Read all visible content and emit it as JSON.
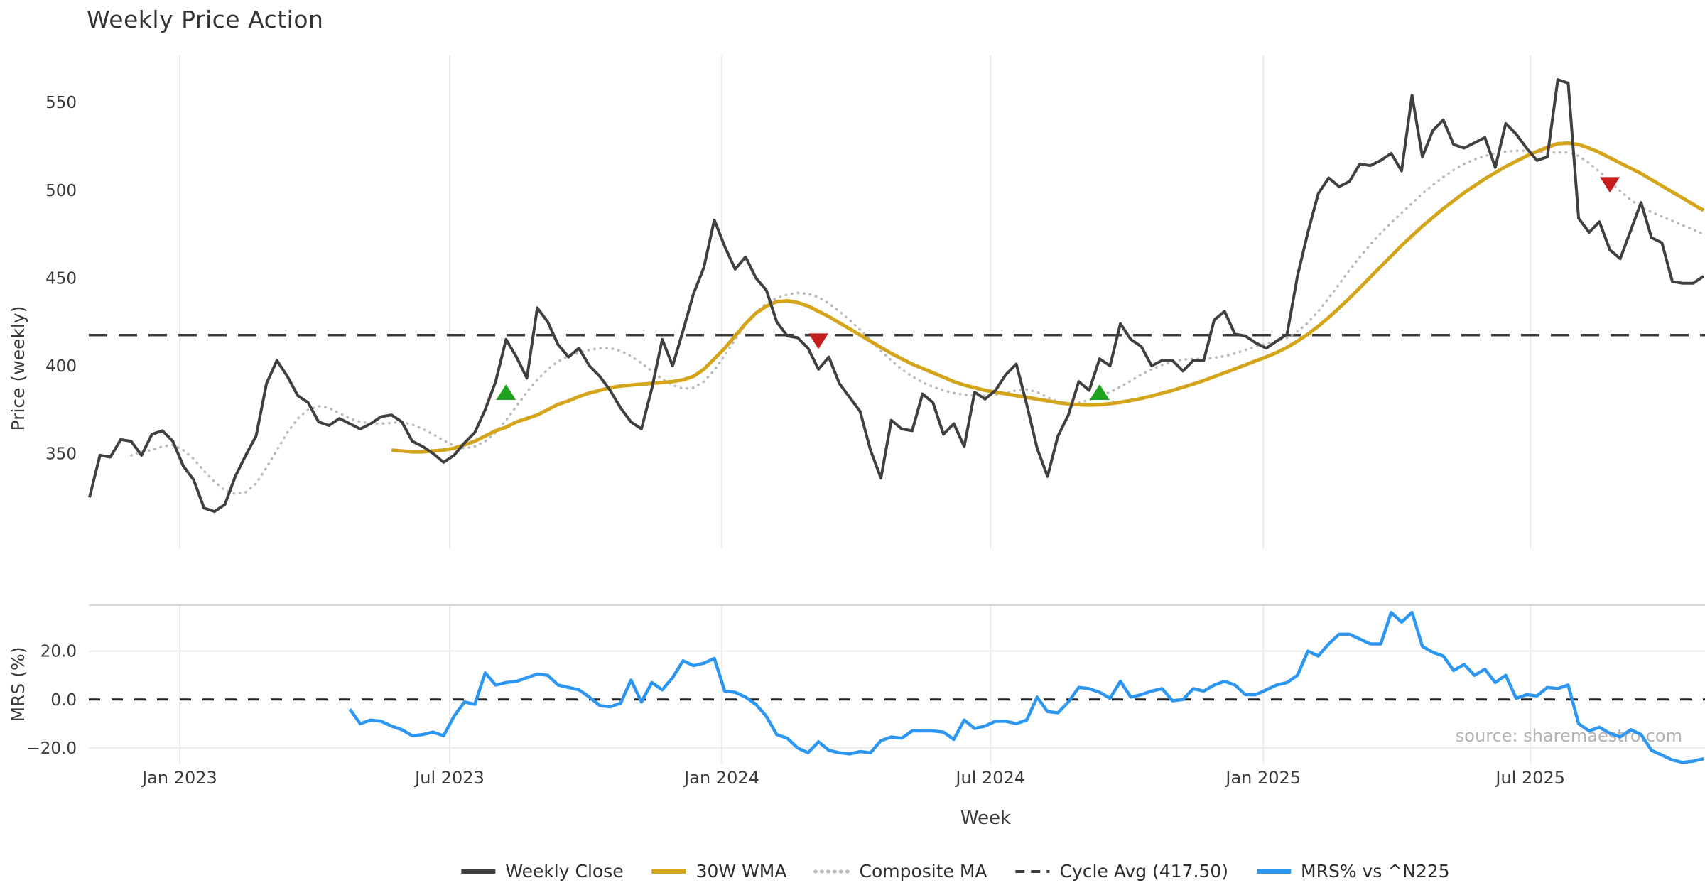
{
  "title": "Weekly Price Action",
  "source": "source: sharemaestro.com",
  "price_axis": {
    "label": "Price (weekly)",
    "ticks": [
      {
        "v": 350,
        "label": "350"
      },
      {
        "v": 400,
        "label": "400"
      },
      {
        "v": 450,
        "label": "450"
      },
      {
        "v": 500,
        "label": "500"
      },
      {
        "v": 550,
        "label": "550"
      }
    ]
  },
  "mrs_axis": {
    "label": "MRS (%)",
    "ticks": [
      {
        "v": -20,
        "label": "−20.0"
      },
      {
        "v": 0,
        "label": "0.0"
      },
      {
        "v": 20,
        "label": "20.0"
      }
    ]
  },
  "x_axis": {
    "label": "Week",
    "ticks": [
      {
        "label": "Jan 2023",
        "i": 8.66
      },
      {
        "label": "Jul 2023",
        "i": 34.59
      },
      {
        "label": "Jan 2024",
        "i": 60.72
      },
      {
        "label": "Jul 2024",
        "i": 86.52
      },
      {
        "label": "Jan 2025",
        "i": 112.72
      },
      {
        "label": "Jul 2025",
        "i": 138.37
      }
    ]
  },
  "legend": [
    {
      "label": "Weekly Close",
      "color": "#404040",
      "style": "solid"
    },
    {
      "label": "30W WMA",
      "color": "#d4a51b",
      "style": "solid"
    },
    {
      "label": "Composite MA",
      "color": "#bbbbbb",
      "style": "dotted"
    },
    {
      "label": "Cycle Avg (417.50)",
      "color": "#3a3a3a",
      "style": "dashed"
    },
    {
      "label": "MRS% vs ^N225",
      "color": "#2d96f0",
      "style": "solid"
    }
  ],
  "colors": {
    "close": "#404040",
    "wma": "#d4a51b",
    "composite": "#bbbbbb",
    "cycle": "#3a3a3a",
    "mrs": "#2d96f0",
    "grid": "#ececec",
    "spine": "#d8d8d8",
    "tick_text": "#3a3a3a",
    "source_text": "#b3b3b3",
    "marker_up": "#1fa31f",
    "marker_down": "#c41e1e"
  },
  "chart_data": {
    "type": "line",
    "title": "Weekly Price Action",
    "x_unit": "week_index",
    "n_weeks": 156,
    "xlabel": "Week",
    "panels": [
      {
        "name": "price",
        "ylabel": "Price (weekly)",
        "ylim": [
          296,
          578
        ],
        "yticks": [
          350,
          400,
          450,
          500,
          550
        ],
        "grid": "vertical"
      },
      {
        "name": "mrs",
        "ylabel": "MRS (%)",
        "ylim": [
          -26.5,
          39
        ],
        "yticks": [
          -20,
          0,
          20
        ],
        "grid": "vertical+horizontal"
      }
    ],
    "cycle_avg": 417.5,
    "mrs_zero_line": 0,
    "series": [
      {
        "name": "Weekly Close",
        "panel": "price",
        "style": "solid",
        "color": "#404040",
        "start": 0,
        "values": [
          325,
          349,
          348,
          358,
          357,
          349,
          361,
          363,
          357,
          343,
          335,
          319,
          317,
          321,
          337,
          349,
          360,
          390,
          403,
          394,
          383,
          379,
          368,
          366,
          370,
          367,
          364,
          367,
          371,
          372,
          368,
          357,
          354,
          350,
          345,
          349,
          356,
          362,
          375,
          391,
          415,
          405,
          393,
          433,
          425,
          412,
          405,
          410,
          400,
          394,
          386,
          376,
          368,
          364,
          387,
          415,
          400,
          420,
          441,
          456,
          483,
          468,
          455,
          462,
          450,
          443,
          425,
          417,
          416,
          410,
          398,
          405,
          390,
          382,
          374,
          352,
          336,
          369,
          364,
          363,
          384,
          379,
          361,
          367,
          354,
          385,
          381,
          386,
          395,
          401,
          378,
          353,
          337,
          360,
          372,
          391,
          386,
          404,
          400,
          424,
          415,
          411,
          400,
          403,
          403,
          397,
          403,
          403,
          426,
          431,
          418,
          417,
          413,
          410,
          414,
          418,
          451,
          476,
          498,
          507,
          502,
          505,
          515,
          514,
          517,
          521,
          511,
          554,
          519,
          534,
          540,
          526,
          524,
          527,
          530,
          513,
          538,
          532,
          524,
          517,
          519,
          563,
          561,
          484,
          476,
          482,
          466,
          461,
          477,
          493,
          473,
          470,
          448,
          447,
          447,
          451
        ]
      },
      {
        "name": "30W WMA",
        "panel": "price",
        "style": "solid",
        "color": "#d4a51b",
        "start": 29,
        "values": [
          352,
          351.5,
          351,
          351,
          351.5,
          352,
          353,
          355,
          357,
          360,
          363,
          365,
          368,
          370,
          372,
          375,
          378,
          380,
          382.5,
          384.5,
          386,
          387.5,
          388.5,
          389,
          389.5,
          390,
          390.5,
          391,
          392,
          394,
          398,
          404,
          410,
          417,
          424,
          430,
          434,
          436.5,
          437,
          436,
          434,
          431,
          428,
          424.5,
          421,
          417.5,
          414,
          410.5,
          407,
          404,
          401,
          398.5,
          396,
          393.5,
          391,
          389,
          387.5,
          386,
          385,
          384,
          383,
          382,
          381,
          380,
          379,
          378.3,
          377.8,
          377.6,
          377.8,
          378.4,
          379.2,
          380.2,
          381.4,
          382.8,
          384.4,
          386,
          387.8,
          389.6,
          391.6,
          393.8,
          396,
          398.2,
          400.5,
          402.8,
          405,
          407.5,
          410.5,
          414,
          418,
          422.5,
          427.5,
          433,
          438.5,
          444.5,
          450.5,
          456.5,
          462.5,
          468.5,
          474,
          479.5,
          484.5,
          489.5,
          494,
          498.5,
          502.5,
          506.5,
          510,
          513.5,
          516.5,
          519.5,
          522,
          524.5,
          526.5,
          526.8,
          526,
          524,
          521.5,
          518.5,
          515.5,
          512.5,
          509.5,
          506,
          502.5,
          499,
          495.5,
          492,
          488.5
        ]
      },
      {
        "name": "Composite MA",
        "panel": "price",
        "style": "dotted",
        "color": "#bbbbbb",
        "start": 4,
        "values": [
          349,
          351,
          352,
          354,
          355,
          352,
          347,
          340,
          334,
          329,
          327,
          328,
          333,
          342,
          352,
          362,
          370,
          375,
          377,
          376,
          373,
          370,
          368,
          367,
          367,
          367.5,
          368,
          366.5,
          364,
          361,
          357.5,
          354.5,
          353,
          354,
          357,
          362,
          369,
          377,
          385,
          392,
          398,
          402.5,
          405.5,
          407.5,
          409,
          410,
          410,
          408.5,
          405.5,
          401.5,
          397,
          392.5,
          389,
          387,
          387.5,
          391,
          397.5,
          406,
          415,
          423.5,
          430.5,
          435.5,
          438.5,
          440.5,
          441.5,
          441,
          439,
          435.5,
          431,
          426,
          420.5,
          414.5,
          408.5,
          403,
          398,
          394,
          390.5,
          388,
          386,
          384.5,
          383.5,
          383,
          383,
          383.5,
          384.5,
          386,
          386.5,
          385,
          382,
          379.5,
          378.5,
          379,
          380.5,
          382.5,
          385,
          388,
          391.5,
          395,
          398,
          400.5,
          402.5,
          403.5,
          404,
          404,
          404.5,
          405.5,
          407,
          409,
          411,
          412.5,
          414,
          416,
          419.5,
          424.5,
          431,
          438.5,
          446.5,
          454.5,
          462,
          469,
          475.5,
          481.5,
          487,
          492.5,
          498,
          503,
          507.5,
          511.5,
          515,
          517.5,
          519.5,
          521,
          522,
          522.5,
          522.5,
          522,
          521.5,
          521.5,
          521.5,
          519.5,
          515.5,
          510.5,
          505,
          499.5,
          494.5,
          490.5,
          487.5,
          485,
          482.5,
          480,
          477.5,
          475
        ]
      },
      {
        "name": "MRS% vs ^N225",
        "panel": "mrs",
        "style": "solid",
        "color": "#2d96f0",
        "start": 25,
        "values": [
          -4,
          -10,
          -8.5,
          -9,
          -11,
          -12.5,
          -15,
          -14.5,
          -13.5,
          -15,
          -7,
          -1,
          -2,
          11,
          6,
          7,
          7.5,
          9,
          10.5,
          10,
          6,
          5,
          4,
          1,
          -2.5,
          -3,
          -1.5,
          8,
          -1,
          7,
          4,
          9,
          16,
          14,
          15,
          17,
          3.5,
          3,
          1,
          -2,
          -7,
          -14.5,
          -16,
          -20,
          -22,
          -17.5,
          -21,
          -22,
          -22.5,
          -21.5,
          -22,
          -17,
          -15.5,
          -16,
          -13,
          -13,
          -13,
          -13.5,
          -16.5,
          -8.5,
          -12,
          -11,
          -9,
          -9,
          -10,
          -8.5,
          1,
          -5,
          -5.5,
          -1,
          5,
          4.5,
          3,
          0.5,
          7.5,
          1,
          2,
          3.5,
          4.5,
          -0.5,
          0,
          4.5,
          3.5,
          6,
          7.5,
          6,
          2,
          2,
          4,
          6,
          7,
          10,
          20,
          18,
          23,
          27,
          27,
          25,
          23,
          23,
          36,
          32,
          36,
          22,
          19.5,
          18,
          12,
          14.5,
          10,
          12.5,
          7,
          10,
          0.5,
          2,
          1.5,
          5,
          4.5,
          6,
          -10,
          -13,
          -11.5,
          -14,
          -15.5,
          -12.5,
          -14.5,
          -21,
          -23,
          -25,
          -26,
          -25.5,
          -24.5
        ]
      }
    ],
    "markers": {
      "buy_signals": [
        {
          "i": 40,
          "v": 385
        },
        {
          "i": 97,
          "v": 385
        }
      ],
      "sell_signals": [
        {
          "i": 70,
          "v": 414
        },
        {
          "i": 146,
          "v": 503
        }
      ]
    },
    "x_ticks": [
      {
        "label": "Jan 2023",
        "i": 8.66
      },
      {
        "label": "Jul 2023",
        "i": 34.59
      },
      {
        "label": "Jan 2024",
        "i": 60.72
      },
      {
        "label": "Jul 2024",
        "i": 86.52
      },
      {
        "label": "Jan 2025",
        "i": 112.72
      },
      {
        "label": "Jul 2025",
        "i": 138.37
      }
    ],
    "legend_entries": [
      "Weekly Close",
      "30W WMA",
      "Composite MA",
      "Cycle Avg (417.50)",
      "MRS% vs ^N225"
    ]
  }
}
